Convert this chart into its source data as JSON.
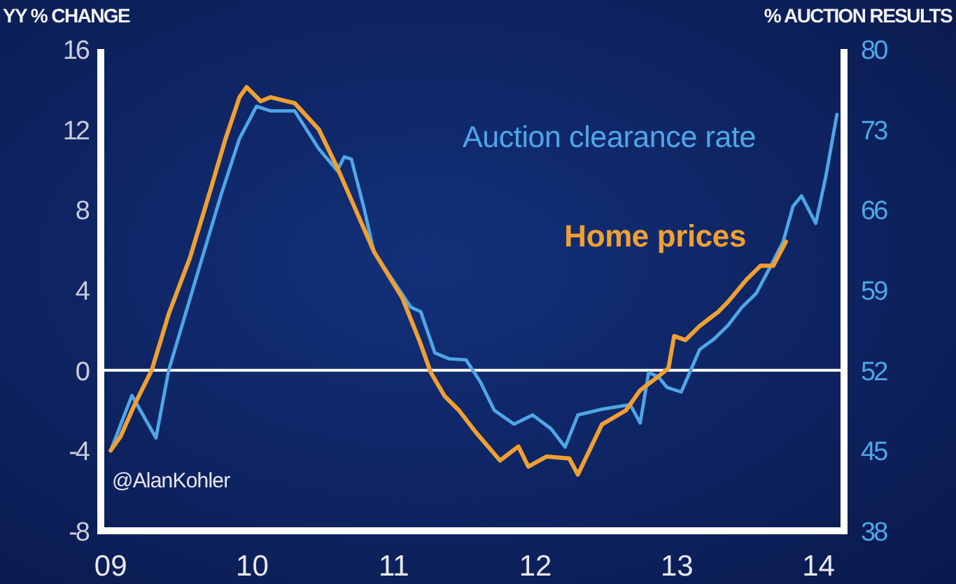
{
  "chart_data": {
    "type": "line",
    "ylabel": "YY % CHANGE",
    "y2label": "% AUCTION RESULTS",
    "annotations": [
      "@AlanKohler"
    ],
    "xlim": [
      2008.93,
      2014.18
    ],
    "xticks": [
      {
        "value": 2009,
        "label": "09"
      },
      {
        "value": 2010,
        "label": "10"
      },
      {
        "value": 2011,
        "label": "11"
      },
      {
        "value": 2012,
        "label": "12"
      },
      {
        "value": 2013,
        "label": "13"
      },
      {
        "value": 2014,
        "label": "14"
      }
    ],
    "ylim": [
      -8,
      16
    ],
    "yticks": [
      -8,
      -4,
      0,
      4,
      8,
      12,
      16
    ],
    "y2lim": [
      38,
      80
    ],
    "y2ticks": [
      38,
      45,
      52,
      59,
      66,
      73,
      80
    ],
    "ref_lines": [
      {
        "axis": "y",
        "value": 0,
        "color": "#ffffff"
      }
    ],
    "series": [
      {
        "name": "Auction clearance rate",
        "color": "#4fa6e6",
        "axis": "y2",
        "x": [
          2009.0,
          2009.15,
          2009.32,
          2009.41,
          2009.61,
          2009.78,
          2009.91,
          2010.03,
          2010.13,
          2010.3,
          2010.47,
          2010.6,
          2010.65,
          2010.7,
          2010.79,
          2010.86,
          2010.99,
          2011.12,
          2011.19,
          2011.29,
          2011.39,
          2011.51,
          2011.61,
          2011.71,
          2011.85,
          2011.98,
          2012.11,
          2012.21,
          2012.3,
          2012.47,
          2012.67,
          2012.74,
          2012.8,
          2012.87,
          2012.93,
          2013.03,
          2013.09,
          2013.16,
          2013.26,
          2013.36,
          2013.46,
          2013.56,
          2013.65,
          2013.75,
          2013.82,
          2013.88,
          2013.98,
          2014.05,
          2014.13
        ],
        "values": [
          45.0,
          49.8,
          46.1,
          52.0,
          60.3,
          67.3,
          72.2,
          75.0,
          74.6,
          74.6,
          71.3,
          69.4,
          70.6,
          70.4,
          66.1,
          62.3,
          59.9,
          57.5,
          57.1,
          53.5,
          53.0,
          52.9,
          51.0,
          48.5,
          47.3,
          48.1,
          46.9,
          45.3,
          48.1,
          48.6,
          49.0,
          47.4,
          51.8,
          51.4,
          50.5,
          50.1,
          51.8,
          53.8,
          54.7,
          55.9,
          57.5,
          58.7,
          60.8,
          63.2,
          66.3,
          67.2,
          64.8,
          68.8,
          74.3
        ]
      },
      {
        "name": "Home prices",
        "color": "#f0a032",
        "x": [
          2009.0,
          2009.07,
          2009.17,
          2009.29,
          2009.41,
          2009.56,
          2009.71,
          2009.81,
          2009.91,
          2009.96,
          2010.06,
          2010.13,
          2010.3,
          2010.47,
          2010.6,
          2010.73,
          2010.86,
          2011.06,
          2011.19,
          2011.26,
          2011.36,
          2011.46,
          2011.58,
          2011.75,
          2011.88,
          2011.95,
          2012.08,
          2012.24,
          2012.3,
          2012.47,
          2012.64,
          2012.74,
          2012.87,
          2012.94,
          2012.98,
          2013.06,
          2013.16,
          2013.29,
          2013.36,
          2013.49,
          2013.59,
          2013.68,
          2013.77
        ],
        "values": [
          -4.0,
          -3.3,
          -1.7,
          0.0,
          2.8,
          5.6,
          9.1,
          11.5,
          13.6,
          14.1,
          13.4,
          13.6,
          13.3,
          12.0,
          10.1,
          8.0,
          5.9,
          3.6,
          1.3,
          -0.1,
          -1.3,
          -2.0,
          -3.1,
          -4.5,
          -3.8,
          -4.8,
          -4.3,
          -4.4,
          -5.2,
          -2.7,
          -2.0,
          -1.0,
          -0.3,
          0.1,
          1.7,
          1.5,
          2.2,
          2.9,
          3.4,
          4.5,
          5.2,
          5.2,
          6.4
        ]
      }
    ]
  }
}
